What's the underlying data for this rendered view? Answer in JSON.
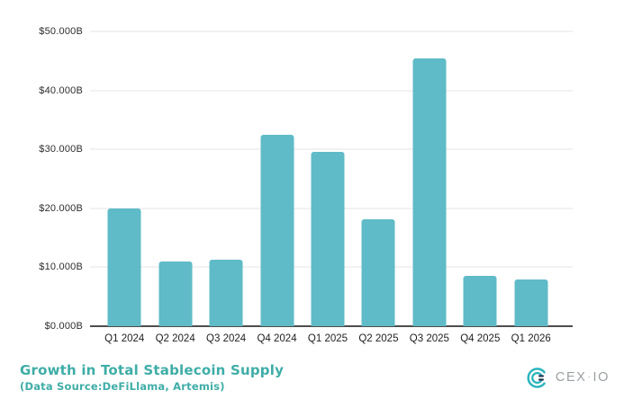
{
  "colors": {
    "background": "#ffffff",
    "bar": "#5fbbc7",
    "grid": "#e4e4e4",
    "axis": "#4d4d4d",
    "tick_text": "#2e2e2e",
    "brand_teal": "#3fada7",
    "logo_mark_teal": "#29b3bc",
    "logo_mark_dark": "#203450",
    "logo_text_gray": "#9ba0a4"
  },
  "chart_data": {
    "type": "bar",
    "title": "Growth in Total Stablecoin Supply",
    "subtitle": "(Data Source:DeFiLlama, Artemis)",
    "categories": [
      "Q1 2024",
      "Q2 2024",
      "Q3 2024",
      "Q4 2024",
      "Q1 2025",
      "Q2 2025",
      "Q3 2025",
      "Q4 2025",
      "Q1 2026"
    ],
    "values": [
      20.0,
      11.0,
      11.3,
      32.5,
      29.5,
      18.2,
      45.5,
      8.5,
      7.9
    ],
    "unit": "billions USD",
    "xlabel": "",
    "ylabel": "",
    "ylim": [
      0,
      50
    ],
    "y_ticks": [
      "$50.000B",
      "$40.000B",
      "$30.000B",
      "$20.000B",
      "$10.000B",
      "$0.000B"
    ],
    "grid": "horizontal",
    "legend": "none"
  },
  "footer": {
    "title": "Growth in Total Stablecoin Supply",
    "subtitle": "(Data Source:DeFiLlama, Artemis)",
    "logo": {
      "text_cex": "CEX",
      "separator": "·",
      "text_io": "IO"
    }
  }
}
